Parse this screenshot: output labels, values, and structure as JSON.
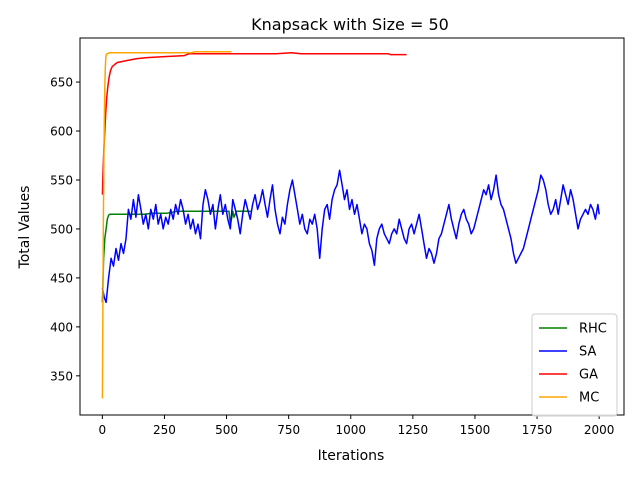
{
  "chart_data": {
    "type": "line",
    "title": "Knapsack with Size = 50",
    "xlabel": "Iterations",
    "ylabel": "Total Values",
    "xlim": [
      -90,
      2100
    ],
    "ylim": [
      310,
      695
    ],
    "xticks": [
      0,
      250,
      500,
      750,
      1000,
      1250,
      1500,
      1750,
      2000
    ],
    "yticks": [
      350,
      400,
      450,
      500,
      550,
      600,
      650
    ],
    "grid": false,
    "legend_position": "lower-right",
    "series": [
      {
        "name": "RHC",
        "color": "#008000",
        "points": [
          [
            0,
            425
          ],
          [
            5,
            470
          ],
          [
            10,
            490
          ],
          [
            15,
            500
          ],
          [
            20,
            510
          ],
          [
            25,
            514
          ],
          [
            30,
            515
          ],
          [
            80,
            515
          ],
          [
            100,
            515
          ],
          [
            130,
            515
          ],
          [
            170,
            515
          ],
          [
            200,
            516
          ],
          [
            260,
            516
          ],
          [
            300,
            518
          ],
          [
            350,
            518
          ],
          [
            400,
            518
          ],
          [
            480,
            518
          ],
          [
            510,
            518
          ],
          [
            515,
            505
          ],
          [
            520,
            510
          ],
          [
            525,
            518
          ],
          [
            530,
            512
          ],
          [
            540,
            518
          ],
          [
            560,
            518
          ],
          [
            600,
            518
          ]
        ]
      },
      {
        "name": "SA",
        "color": "#0000ff",
        "points": [
          [
            0,
            440
          ],
          [
            8,
            430
          ],
          [
            15,
            425
          ],
          [
            25,
            450
          ],
          [
            35,
            470
          ],
          [
            45,
            462
          ],
          [
            55,
            480
          ],
          [
            65,
            468
          ],
          [
            75,
            485
          ],
          [
            85,
            475
          ],
          [
            95,
            490
          ],
          [
            105,
            520
          ],
          [
            115,
            510
          ],
          [
            125,
            530
          ],
          [
            135,
            512
          ],
          [
            145,
            535
          ],
          [
            155,
            520
          ],
          [
            165,
            505
          ],
          [
            175,
            515
          ],
          [
            185,
            500
          ],
          [
            195,
            520
          ],
          [
            205,
            510
          ],
          [
            215,
            525
          ],
          [
            225,
            505
          ],
          [
            235,
            515
          ],
          [
            245,
            500
          ],
          [
            255,
            512
          ],
          [
            265,
            505
          ],
          [
            275,
            520
          ],
          [
            285,
            510
          ],
          [
            295,
            525
          ],
          [
            305,
            515
          ],
          [
            315,
            530
          ],
          [
            325,
            520
          ],
          [
            335,
            505
          ],
          [
            345,
            515
          ],
          [
            355,
            500
          ],
          [
            365,
            510
          ],
          [
            375,
            495
          ],
          [
            385,
            505
          ],
          [
            395,
            490
          ],
          [
            405,
            525
          ],
          [
            415,
            540
          ],
          [
            425,
            530
          ],
          [
            435,
            515
          ],
          [
            445,
            525
          ],
          [
            455,
            500
          ],
          [
            465,
            520
          ],
          [
            475,
            535
          ],
          [
            485,
            515
          ],
          [
            495,
            525
          ],
          [
            505,
            510
          ],
          [
            515,
            500
          ],
          [
            525,
            530
          ],
          [
            535,
            520
          ],
          [
            545,
            510
          ],
          [
            555,
            495
          ],
          [
            565,
            515
          ],
          [
            575,
            530
          ],
          [
            585,
            520
          ],
          [
            595,
            510
          ],
          [
            605,
            525
          ],
          [
            615,
            535
          ],
          [
            625,
            520
          ],
          [
            635,
            528
          ],
          [
            645,
            540
          ],
          [
            655,
            525
          ],
          [
            665,
            512
          ],
          [
            675,
            530
          ],
          [
            685,
            545
          ],
          [
            695,
            520
          ],
          [
            705,
            505
          ],
          [
            715,
            495
          ],
          [
            725,
            512
          ],
          [
            735,
            505
          ],
          [
            745,
            525
          ],
          [
            755,
            540
          ],
          [
            765,
            550
          ],
          [
            775,
            535
          ],
          [
            785,
            520
          ],
          [
            795,
            505
          ],
          [
            805,
            515
          ],
          [
            815,
            500
          ],
          [
            825,
            495
          ],
          [
            835,
            510
          ],
          [
            845,
            505
          ],
          [
            855,
            515
          ],
          [
            865,
            500
          ],
          [
            875,
            470
          ],
          [
            885,
            500
          ],
          [
            895,
            520
          ],
          [
            905,
            525
          ],
          [
            915,
            510
          ],
          [
            925,
            530
          ],
          [
            935,
            540
          ],
          [
            945,
            545
          ],
          [
            955,
            560
          ],
          [
            965,
            545
          ],
          [
            975,
            530
          ],
          [
            985,
            540
          ],
          [
            995,
            520
          ],
          [
            1005,
            530
          ],
          [
            1015,
            515
          ],
          [
            1025,
            525
          ],
          [
            1035,
            510
          ],
          [
            1045,
            495
          ],
          [
            1055,
            505
          ],
          [
            1065,
            500
          ],
          [
            1075,
            485
          ],
          [
            1085,
            478
          ],
          [
            1095,
            463
          ],
          [
            1105,
            490
          ],
          [
            1115,
            500
          ],
          [
            1125,
            505
          ],
          [
            1135,
            495
          ],
          [
            1145,
            490
          ],
          [
            1155,
            485
          ],
          [
            1165,
            495
          ],
          [
            1175,
            500
          ],
          [
            1185,
            495
          ],
          [
            1195,
            510
          ],
          [
            1205,
            500
          ],
          [
            1215,
            490
          ],
          [
            1225,
            485
          ],
          [
            1235,
            500
          ],
          [
            1245,
            505
          ],
          [
            1255,
            495
          ],
          [
            1265,
            505
          ],
          [
            1275,
            515
          ],
          [
            1285,
            500
          ],
          [
            1295,
            485
          ],
          [
            1305,
            470
          ],
          [
            1315,
            480
          ],
          [
            1325,
            475
          ],
          [
            1335,
            465
          ],
          [
            1345,
            475
          ],
          [
            1355,
            490
          ],
          [
            1365,
            495
          ],
          [
            1375,
            505
          ],
          [
            1385,
            515
          ],
          [
            1395,
            525
          ],
          [
            1405,
            510
          ],
          [
            1415,
            500
          ],
          [
            1425,
            490
          ],
          [
            1435,
            505
          ],
          [
            1445,
            515
          ],
          [
            1455,
            520
          ],
          [
            1465,
            510
          ],
          [
            1475,
            505
          ],
          [
            1485,
            495
          ],
          [
            1495,
            500
          ],
          [
            1505,
            510
          ],
          [
            1515,
            520
          ],
          [
            1525,
            530
          ],
          [
            1535,
            540
          ],
          [
            1545,
            535
          ],
          [
            1555,
            545
          ],
          [
            1565,
            530
          ],
          [
            1575,
            540
          ],
          [
            1585,
            555
          ],
          [
            1595,
            535
          ],
          [
            1605,
            525
          ],
          [
            1615,
            520
          ],
          [
            1625,
            510
          ],
          [
            1635,
            500
          ],
          [
            1645,
            490
          ],
          [
            1655,
            475
          ],
          [
            1665,
            465
          ],
          [
            1675,
            470
          ],
          [
            1685,
            475
          ],
          [
            1695,
            480
          ],
          [
            1705,
            490
          ],
          [
            1715,
            500
          ],
          [
            1725,
            510
          ],
          [
            1735,
            520
          ],
          [
            1745,
            530
          ],
          [
            1755,
            540
          ],
          [
            1765,
            555
          ],
          [
            1775,
            550
          ],
          [
            1785,
            540
          ],
          [
            1795,
            525
          ],
          [
            1805,
            515
          ],
          [
            1815,
            520
          ],
          [
            1825,
            530
          ],
          [
            1835,
            515
          ],
          [
            1845,
            530
          ],
          [
            1855,
            545
          ],
          [
            1865,
            535
          ],
          [
            1875,
            525
          ],
          [
            1885,
            540
          ],
          [
            1895,
            530
          ],
          [
            1905,
            515
          ],
          [
            1915,
            500
          ],
          [
            1925,
            510
          ],
          [
            1935,
            515
          ],
          [
            1945,
            520
          ],
          [
            1955,
            515
          ],
          [
            1965,
            525
          ],
          [
            1975,
            520
          ],
          [
            1985,
            510
          ],
          [
            1995,
            525
          ],
          [
            2000,
            515
          ]
        ]
      },
      {
        "name": "GA",
        "color": "#ff0000",
        "points": [
          [
            0,
            535
          ],
          [
            3,
            560
          ],
          [
            6,
            580
          ],
          [
            10,
            600
          ],
          [
            14,
            620
          ],
          [
            18,
            635
          ],
          [
            22,
            645
          ],
          [
            27,
            655
          ],
          [
            33,
            662
          ],
          [
            40,
            666
          ],
          [
            50,
            668
          ],
          [
            60,
            670
          ],
          [
            80,
            671
          ],
          [
            100,
            672
          ],
          [
            120,
            673
          ],
          [
            140,
            674
          ],
          [
            180,
            675
          ],
          [
            250,
            676
          ],
          [
            330,
            677
          ],
          [
            350,
            679
          ],
          [
            500,
            679
          ],
          [
            600,
            679
          ],
          [
            700,
            679
          ],
          [
            760,
            680
          ],
          [
            800,
            679
          ],
          [
            900,
            679
          ],
          [
            1000,
            679
          ],
          [
            1100,
            679
          ],
          [
            1150,
            679
          ],
          [
            1160,
            678
          ],
          [
            1225,
            678
          ]
        ]
      },
      {
        "name": "MC",
        "color": "#ffa500",
        "points": [
          [
            0,
            327
          ],
          [
            2,
            420
          ],
          [
            4,
            500
          ],
          [
            6,
            560
          ],
          [
            8,
            610
          ],
          [
            10,
            645
          ],
          [
            12,
            665
          ],
          [
            14,
            675
          ],
          [
            16,
            678
          ],
          [
            20,
            679
          ],
          [
            30,
            680
          ],
          [
            60,
            680
          ],
          [
            100,
            680
          ],
          [
            200,
            680
          ],
          [
            300,
            680
          ],
          [
            360,
            680
          ],
          [
            370,
            681
          ],
          [
            450,
            681
          ],
          [
            520,
            681
          ]
        ]
      }
    ]
  }
}
